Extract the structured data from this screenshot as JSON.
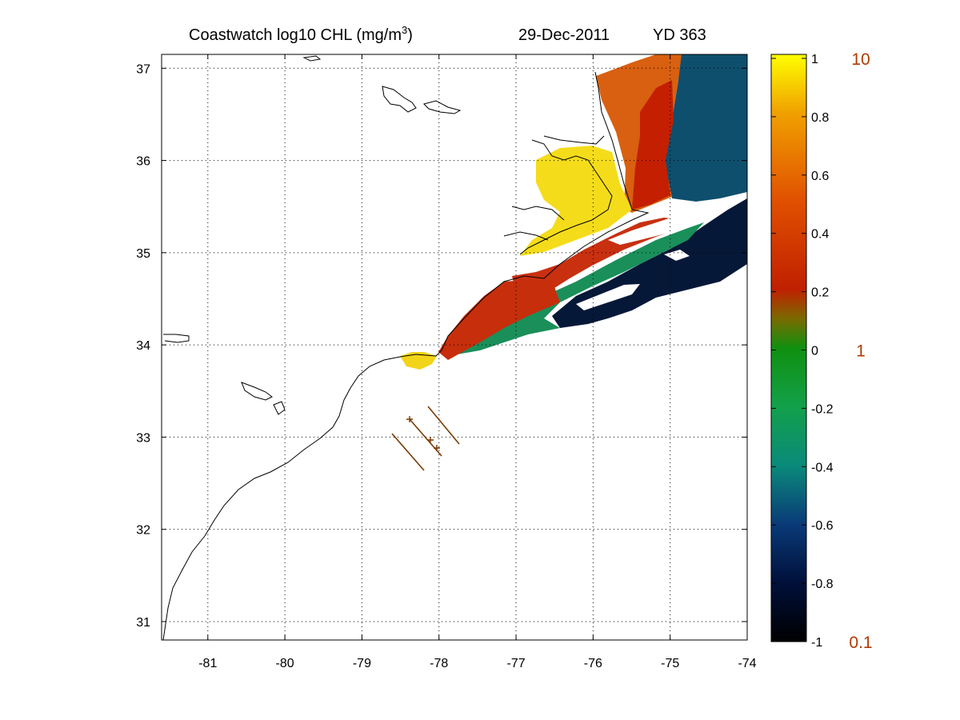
{
  "title": {
    "left": "Coastwatch  log10  CHL (mg/m",
    "superscript": "3",
    "right_paren": ")",
    "date": "29-Dec-2011",
    "yearday": "YD 363"
  },
  "map": {
    "lon_range": [
      -81.6,
      -74.0
    ],
    "lat_range": [
      30.8,
      37.15
    ],
    "x_ticks": [
      "-81",
      "-80",
      "-79",
      "-78",
      "-77",
      "-76",
      "-75",
      "-74"
    ],
    "x_tick_values": [
      -81,
      -80,
      -79,
      -78,
      -77,
      -76,
      -75,
      -74
    ],
    "y_ticks": [
      "31",
      "32",
      "33",
      "34",
      "35",
      "36",
      "37"
    ],
    "y_tick_values": [
      31,
      32,
      33,
      34,
      35,
      36,
      37
    ],
    "grid": "dotted",
    "coast_color": "#000000",
    "track_color": "#7a3a00"
  },
  "colorbar": {
    "ticks": [
      "1",
      "0.8",
      "0.6",
      "0.4",
      "0.2",
      "0",
      "-0.2",
      "-0.4",
      "-0.6",
      "-0.8",
      "-1"
    ],
    "tick_values": [
      1,
      0.8,
      0.6,
      0.4,
      0.2,
      0,
      -0.2,
      -0.4,
      -0.6,
      -0.8,
      -1
    ],
    "range": [
      -1,
      1
    ],
    "concentration_labels": [
      "10",
      "1",
      "0.1"
    ],
    "concentration_values": [
      1,
      0,
      -1
    ],
    "concentration_color": "#b03a00",
    "colors": [
      "#000000",
      "#00103a",
      "#0a3a78",
      "#0a8a7a",
      "#12a04a",
      "#109010",
      "#7a6a00",
      "#c02000",
      "#e05000",
      "#f0a000",
      "#ffff00"
    ]
  }
}
